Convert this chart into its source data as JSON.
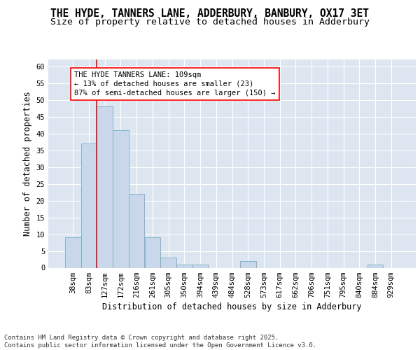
{
  "title_line1": "THE HYDE, TANNERS LANE, ADDERBURY, BANBURY, OX17 3ET",
  "title_line2": "Size of property relative to detached houses in Adderbury",
  "xlabel": "Distribution of detached houses by size in Adderbury",
  "ylabel": "Number of detached properties",
  "bar_color": "#c8d8ea",
  "bar_edge_color": "#7aaac8",
  "background_color": "#dde6f0",
  "grid_color": "#ffffff",
  "categories": [
    "38sqm",
    "83sqm",
    "127sqm",
    "172sqm",
    "216sqm",
    "261sqm",
    "305sqm",
    "350sqm",
    "394sqm",
    "439sqm",
    "484sqm",
    "528sqm",
    "573sqm",
    "617sqm",
    "662sqm",
    "706sqm",
    "751sqm",
    "795sqm",
    "840sqm",
    "884sqm",
    "929sqm"
  ],
  "values": [
    9,
    37,
    48,
    41,
    22,
    9,
    3,
    1,
    1,
    0,
    0,
    2,
    0,
    0,
    0,
    0,
    0,
    0,
    0,
    1,
    0
  ],
  "ylim": [
    0,
    62
  ],
  "yticks": [
    0,
    5,
    10,
    15,
    20,
    25,
    30,
    35,
    40,
    45,
    50,
    55,
    60
  ],
  "vline_x": 1.5,
  "annotation_text": "THE HYDE TANNERS LANE: 109sqm\n← 13% of detached houses are smaller (23)\n87% of semi-detached houses are larger (150) →",
  "footer_text": "Contains HM Land Registry data © Crown copyright and database right 2025.\nContains public sector information licensed under the Open Government Licence v3.0.",
  "title_fontsize": 10.5,
  "subtitle_fontsize": 9.5,
  "axis_label_fontsize": 8.5,
  "tick_fontsize": 7.5,
  "annotation_fontsize": 7.5,
  "footer_fontsize": 6.5
}
